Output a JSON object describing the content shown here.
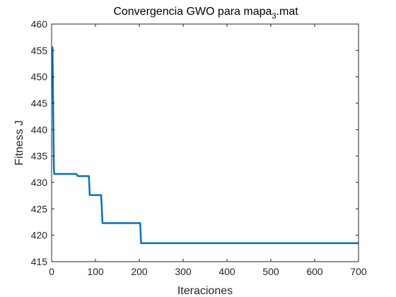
{
  "chart_data": {
    "type": "line",
    "title": {
      "prefix": "Convergencia GWO para mapa",
      "subscript": "3",
      "suffix": ".mat"
    },
    "xlabel": "Iteraciones",
    "ylabel": "Fitness J",
    "xlim": [
      0,
      700
    ],
    "ylim": [
      415,
      460
    ],
    "xticks": [
      0,
      100,
      200,
      300,
      400,
      500,
      600,
      700
    ],
    "yticks": [
      415,
      420,
      425,
      430,
      435,
      440,
      445,
      450,
      455,
      460
    ],
    "grid": false,
    "series": [
      {
        "color": "#0072BD",
        "x": [
          1,
          2,
          3,
          4,
          5,
          6,
          8,
          56,
          60,
          85,
          87,
          113,
          116,
          202,
          204,
          700
        ],
        "y": [
          455.7,
          455.5,
          448,
          441,
          433,
          431.6,
          431.6,
          431.6,
          431.2,
          431.2,
          427.6,
          427.6,
          422.3,
          422.3,
          418.5,
          418.5
        ]
      }
    ]
  }
}
